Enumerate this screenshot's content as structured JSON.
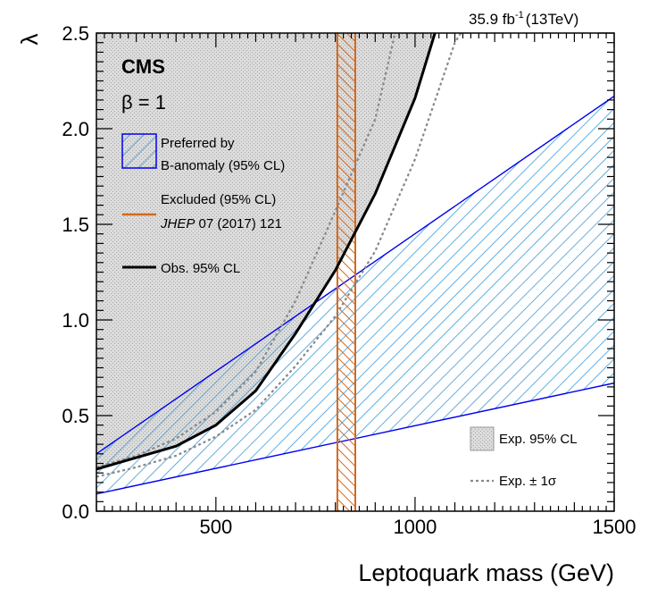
{
  "chart_data": {
    "type": "line",
    "lumi_label": "35.9 fb",
    "lumi_exponent": "-1",
    "energy_label": "(13TeV)",
    "experiment": "CMS",
    "beta_label": "β = 1",
    "xlabel": "Leptoquark mass (GeV)",
    "ylabel": "λ",
    "xlim": [
      200,
      1500
    ],
    "ylim": [
      0.0,
      2.5
    ],
    "x_ticks": [
      500,
      1000,
      1500
    ],
    "y_ticks": [
      "0.0",
      "0.5",
      "1.0",
      "1.5",
      "2.0",
      "2.5"
    ],
    "grid": false,
    "observed": {
      "name": "Obs. 95% CL",
      "color": "#000000",
      "points": [
        [
          200,
          0.22
        ],
        [
          300,
          0.28
        ],
        [
          400,
          0.34
        ],
        [
          500,
          0.45
        ],
        [
          600,
          0.63
        ],
        [
          700,
          0.93
        ],
        [
          800,
          1.26
        ],
        [
          900,
          1.66
        ],
        [
          1000,
          2.16
        ],
        [
          1050,
          2.5
        ]
      ]
    },
    "expected": {
      "name": "Exp. 95% CL",
      "fill_color": "#d3d3d3",
      "points": [
        [
          200,
          0.22
        ],
        [
          300,
          0.28
        ],
        [
          400,
          0.34
        ],
        [
          500,
          0.45
        ],
        [
          600,
          0.63
        ],
        [
          700,
          0.93
        ],
        [
          800,
          1.26
        ],
        [
          900,
          1.66
        ],
        [
          1000,
          2.16
        ],
        [
          1050,
          2.5
        ]
      ]
    },
    "expected_band": {
      "name": "Exp. ± 1σ",
      "color": "#888888",
      "upper": [
        [
          200,
          0.23
        ],
        [
          300,
          0.29
        ],
        [
          400,
          0.38
        ],
        [
          500,
          0.52
        ],
        [
          600,
          0.73
        ],
        [
          700,
          1.1
        ],
        [
          800,
          1.57
        ],
        [
          900,
          2.05
        ],
        [
          950,
          2.5
        ]
      ],
      "lower": [
        [
          200,
          0.18
        ],
        [
          300,
          0.23
        ],
        [
          400,
          0.29
        ],
        [
          500,
          0.39
        ],
        [
          600,
          0.53
        ],
        [
          700,
          0.76
        ],
        [
          800,
          1.02
        ],
        [
          900,
          1.36
        ],
        [
          1000,
          1.84
        ],
        [
          1100,
          2.45
        ],
        [
          1115,
          2.5
        ]
      ]
    },
    "b_anomaly": {
      "name": "Preferred by",
      "name_line2": "B-anomaly (95% CL)",
      "color": "#0000ee",
      "hatch_color": "#3a9ad9",
      "upper": [
        [
          200,
          0.3
        ],
        [
          1500,
          2.17
        ]
      ],
      "lower": [
        [
          200,
          0.09
        ],
        [
          1500,
          0.67
        ]
      ]
    },
    "jhep_exclusion": {
      "name": "Excluded (95% CL)",
      "name_italic": "JHEP",
      "name_rest": " 07 (2017) 121",
      "color": "#d2691e",
      "x_range": [
        805,
        850
      ]
    },
    "legend_placement": "top-left"
  }
}
